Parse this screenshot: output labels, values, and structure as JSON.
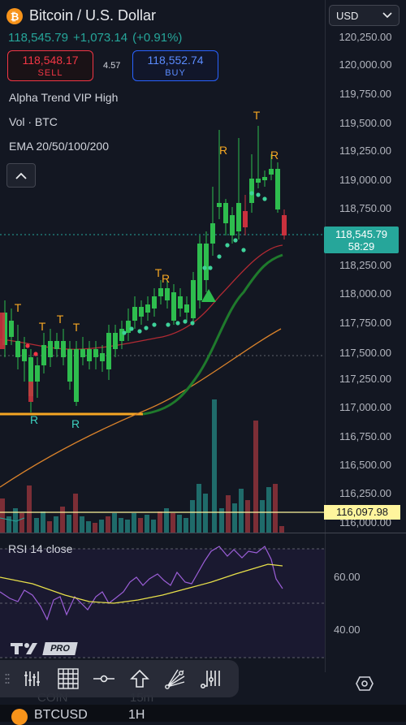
{
  "header": {
    "title": "Bitcoin / U.S. Dollar",
    "last_price": "118,545.79",
    "change": "+1,073.14",
    "change_pct": "(+0.91%)",
    "currency": "USD"
  },
  "trade": {
    "sell_price": "118,548.17",
    "sell_label": "SELL",
    "spread": "4.57",
    "buy_price": "118,552.74",
    "buy_label": "BUY"
  },
  "indicators": {
    "line1": "Alpha Trend VIP High",
    "line2": "Vol · BTC",
    "line3": "EMA 20/50/100/200"
  },
  "price_axis": {
    "ticks": [
      "120,250.00",
      "120,000.00",
      "119,750.00",
      "119,500.00",
      "119,250.00",
      "119,000.00",
      "118,750.00",
      "118,250.00",
      "118,000.00",
      "117,750.00",
      "117,500.00",
      "117,250.00",
      "117,000.00",
      "116,750.00",
      "116,500.00",
      "116,250.00",
      "116,000.00"
    ],
    "current_price": "118,545.79",
    "countdown": "58:29",
    "level_price": "116,097.98"
  },
  "rsi": {
    "label": "RSI 14 close",
    "ticks": [
      "60.00",
      "40.00"
    ]
  },
  "branding": {
    "pro": "PRO"
  },
  "footer": {
    "left": "COIN",
    "mid": "15m",
    "symbol": "BTCUSD",
    "interval": "1H"
  },
  "signals": {
    "top": "T",
    "resistance": "R"
  },
  "colors": {
    "up": "#2ebd4e",
    "down": "#c9313d",
    "background": "#131722",
    "accent_orange": "#f5a623",
    "ema_green": "#1f7a2c",
    "ema_red": "#b22a33",
    "ema_orange": "#d9822b",
    "rsi_purple": "#9c5fd8",
    "rsi_signal": "#e8e04a"
  },
  "icons": [
    "bitcoin-icon",
    "chevron-down-icon",
    "chevron-up-icon",
    "tradingview-logo",
    "indicators-icon",
    "grid-icon",
    "horizontal-line-icon",
    "arrow-up-icon",
    "fib-fan-icon",
    "pitchfork-icon",
    "gear-icon"
  ]
}
